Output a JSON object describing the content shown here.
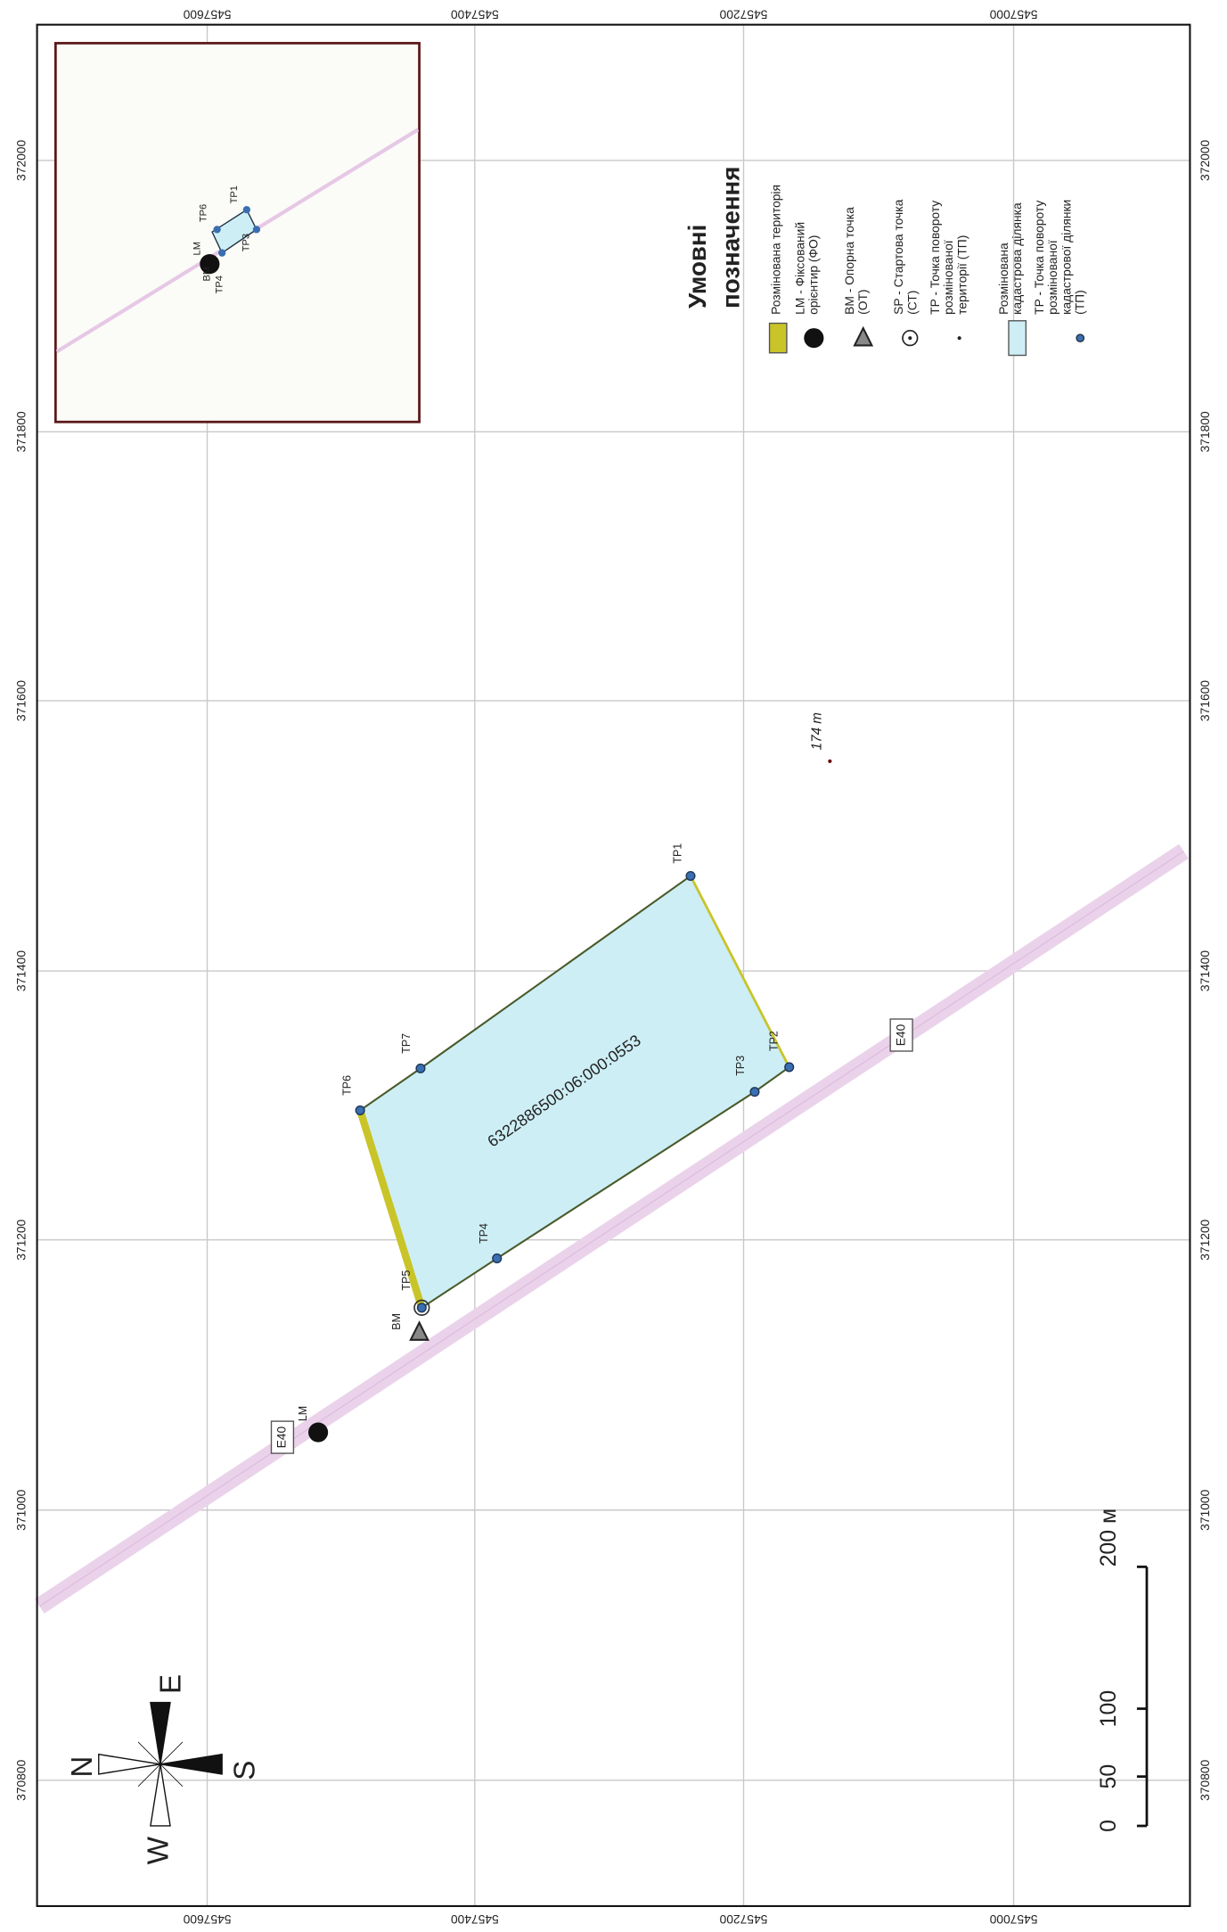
{
  "grid": {
    "northing": [
      "5457600",
      "5457400",
      "5457200",
      "5457000"
    ],
    "easting": [
      "370800",
      "371000",
      "371200",
      "371400",
      "371600",
      "371800",
      "372000"
    ]
  },
  "legend": {
    "title": [
      "Умовні",
      "позначення"
    ],
    "items": [
      [
        "Розмінована територія"
      ],
      [
        "LM - Фіксований",
        "орієнтир (ФО)"
      ],
      [
        "BM - Опорна точка",
        "(ОТ)"
      ],
      [
        "SP - Стартова точка",
        "(СТ)"
      ],
      [
        "TP - Точка повороту",
        "розмінованої",
        "території (ТП)"
      ],
      [
        "Розмінована",
        "кадастрова ділянка"
      ],
      [
        "TP - Точка повороту",
        "розмінованої",
        "кадастрової ділянки",
        "(ТП)"
      ]
    ]
  },
  "map": {
    "points": [
      "TP1",
      "TP2",
      "TP3",
      "TP4",
      "TP5",
      "TP6",
      "TP7"
    ],
    "bm": "BM",
    "lm": "LM",
    "road": [
      "E40",
      "E40"
    ],
    "elevation": "174 m",
    "parcel": "6322886500:06:000:0553"
  },
  "inset": {
    "labels": [
      "TP6",
      "LM",
      "TP1",
      "BM",
      "TP3",
      "TP4"
    ]
  },
  "compass": [
    "N",
    "E",
    "S",
    "W"
  ],
  "scale": [
    "0",
    "50",
    "100",
    "200 м"
  ]
}
